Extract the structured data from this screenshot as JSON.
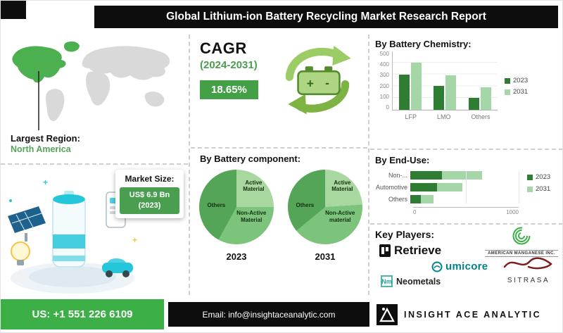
{
  "header": {
    "title": "Global Lithium-ion Battery Recycling Market Research Report"
  },
  "region": {
    "label": "Largest Region:",
    "value": "North America"
  },
  "market_size": {
    "label": "Market Size:",
    "value": "US$ 6.9 Bn",
    "year": "(2023)"
  },
  "cagr": {
    "label": "CAGR",
    "period": "(2024-2031)",
    "value": "18.65%"
  },
  "battery_component": {
    "title": "By Battery component:"
  },
  "key_players": {
    "title": "Key Players:",
    "retriev": "Retrieve",
    "american_manganese": "AMERICAN MANGANESE INC.",
    "umicore": "umicore",
    "neometals_abbr": "Nm",
    "neometals": "Neometals",
    "sitrasa": "SITRASA"
  },
  "footer": {
    "phone": "US: +1 551 226 6109",
    "email": "Email: info@insightaceanalytic.com",
    "brand": "INSIGHT ACE ANALYTIC"
  },
  "colors": {
    "dark_green": "#2e7d32",
    "green": "#3daf47",
    "light_green": "#a5d6a7",
    "teal": "#26c6da",
    "black": "#0d0d0d"
  },
  "chart_data": [
    {
      "name": "battery_chemistry",
      "type": "bar",
      "title": "By Battery Chemistry:",
      "categories": [
        "LFP",
        "LMO",
        "Others"
      ],
      "series": [
        {
          "name": "2023",
          "color": "#2e7d32",
          "values": [
            300,
            200,
            100
          ]
        },
        {
          "name": "2031",
          "color": "#a5d6a7",
          "values": [
            400,
            290,
            190
          ]
        }
      ],
      "ylim": [
        0,
        500
      ],
      "yticks": [
        0,
        100,
        200,
        300,
        400,
        500
      ],
      "grid": true,
      "legend_position": "right"
    },
    {
      "name": "end_use",
      "type": "bar-horizontal-stacked",
      "title": "By End-Use:",
      "categories": [
        "Non-...",
        "Automotive",
        "Others"
      ],
      "series": [
        {
          "name": "2023",
          "color": "#2e7d32",
          "values": [
            300,
            250,
            100
          ]
        },
        {
          "name": "2031",
          "color": "#a5d6a7",
          "values": [
            380,
            240,
            120
          ]
        }
      ],
      "xlim": [
        0,
        1000
      ],
      "xticks": [
        0,
        1000
      ],
      "grid": true,
      "legend_position": "right"
    },
    {
      "name": "battery_component_2023",
      "type": "pie",
      "year_label": "2023",
      "slices": [
        {
          "label": "Active Material",
          "value": 25,
          "color": "#a8d8a0"
        },
        {
          "label": "Non-Active Material",
          "value": 33,
          "color": "#7cc47c"
        },
        {
          "label": "Others",
          "value": 42,
          "color": "#55a558"
        }
      ]
    },
    {
      "name": "battery_component_2031",
      "type": "pie",
      "year_label": "2031",
      "slices": [
        {
          "label": "Active Material",
          "value": 24,
          "color": "#a8d8a0"
        },
        {
          "label": "Non-Active material",
          "value": 40,
          "color": "#7cc47c"
        },
        {
          "label": "Others",
          "value": 36,
          "color": "#55a558"
        }
      ]
    }
  ]
}
